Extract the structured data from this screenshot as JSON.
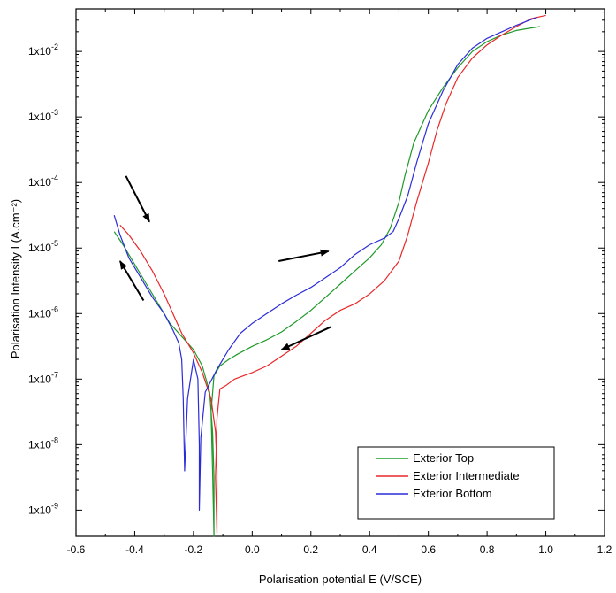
{
  "chart_data": {
    "type": "line",
    "title": "",
    "xlabel": "Polarisation potential E (V/SCE)",
    "ylabel": "Polarisation Intensity I (A.cm⁻²)",
    "xlim": [
      -0.6,
      1.2
    ],
    "ylim_log10": [
      -9.4,
      -1.35
    ],
    "grid": false,
    "x_ticks": [
      -0.6,
      -0.4,
      -0.2,
      0.0,
      0.2,
      0.4,
      0.6,
      0.8,
      1.0,
      1.2
    ],
    "x_tick_labels": [
      "-0.6",
      "-0.4",
      "-0.2",
      "0.0",
      "0.2",
      "0.4",
      "0.6",
      "0.8",
      "1.0",
      "1.2"
    ],
    "y_ticks": [
      {
        "base": "1x10",
        "exp": "-9",
        "log10": -9
      },
      {
        "base": "1x10",
        "exp": "-8",
        "log10": -8
      },
      {
        "base": "1x10",
        "exp": "-7",
        "log10": -7
      },
      {
        "base": "1x10",
        "exp": "-6",
        "log10": -6
      },
      {
        "base": "1x10",
        "exp": "-5",
        "log10": -5
      },
      {
        "base": "1x10",
        "exp": "-4",
        "log10": -4
      },
      {
        "base": "1x10",
        "exp": "-3",
        "log10": -3
      },
      {
        "base": "1x10",
        "exp": "-2",
        "log10": -2
      }
    ],
    "legend_position": "bottom-right",
    "series": [
      {
        "name": "Exterior Top",
        "color": "#1f9a2a",
        "x": [
          -0.47,
          -0.44,
          -0.4,
          -0.36,
          -0.32,
          -0.28,
          -0.24,
          -0.2,
          -0.17,
          -0.145,
          -0.135,
          -0.13,
          -0.13,
          -0.135,
          -0.14,
          -0.13,
          -0.11,
          -0.08,
          -0.05,
          0.0,
          0.05,
          0.1,
          0.15,
          0.2,
          0.25,
          0.3,
          0.35,
          0.4,
          0.44,
          0.47,
          0.5,
          0.52,
          0.55,
          0.6,
          0.65,
          0.7,
          0.75,
          0.8,
          0.85,
          0.9,
          0.98
        ],
        "log_y": [
          -4.75,
          -4.95,
          -5.25,
          -5.55,
          -5.85,
          -6.15,
          -6.35,
          -6.55,
          -6.8,
          -7.2,
          -7.8,
          -8.5,
          -9.4,
          -8.4,
          -7.5,
          -6.95,
          -6.8,
          -6.7,
          -6.62,
          -6.5,
          -6.4,
          -6.28,
          -6.12,
          -5.95,
          -5.75,
          -5.55,
          -5.35,
          -5.15,
          -4.95,
          -4.7,
          -4.3,
          -3.9,
          -3.4,
          -2.9,
          -2.55,
          -2.25,
          -2.0,
          -1.85,
          -1.75,
          -1.68,
          -1.62
        ]
      },
      {
        "name": "Exterior Intermediate",
        "color": "#e8282a",
        "x": [
          -0.45,
          -0.42,
          -0.38,
          -0.34,
          -0.3,
          -0.27,
          -0.24,
          -0.2,
          -0.17,
          -0.14,
          -0.125,
          -0.12,
          -0.12,
          -0.125,
          -0.12,
          -0.11,
          -0.09,
          -0.06,
          -0.03,
          0.0,
          0.05,
          0.1,
          0.15,
          0.2,
          0.25,
          0.3,
          0.35,
          0.4,
          0.45,
          0.5,
          0.53,
          0.56,
          0.6,
          0.63,
          0.66,
          0.7,
          0.75,
          0.8,
          0.85,
          0.9,
          0.95,
          1.0
        ],
        "log_y": [
          -4.65,
          -4.8,
          -5.05,
          -5.35,
          -5.7,
          -6.0,
          -6.3,
          -6.6,
          -6.9,
          -7.3,
          -7.8,
          -8.4,
          -9.35,
          -8.5,
          -7.6,
          -7.15,
          -7.1,
          -7.0,
          -6.95,
          -6.9,
          -6.8,
          -6.65,
          -6.5,
          -6.3,
          -6.1,
          -5.95,
          -5.85,
          -5.7,
          -5.5,
          -5.2,
          -4.8,
          -4.3,
          -3.7,
          -3.2,
          -2.8,
          -2.4,
          -2.1,
          -1.9,
          -1.75,
          -1.62,
          -1.5,
          -1.45
        ]
      },
      {
        "name": "Exterior Bottom",
        "color": "#2b2bd9",
        "x": [
          -0.47,
          -0.45,
          -0.42,
          -0.38,
          -0.34,
          -0.3,
          -0.27,
          -0.25,
          -0.24,
          -0.235,
          -0.23,
          -0.22,
          -0.2,
          -0.185,
          -0.18,
          -0.18,
          -0.175,
          -0.16,
          -0.12,
          -0.08,
          -0.04,
          0.0,
          0.05,
          0.1,
          0.15,
          0.2,
          0.25,
          0.3,
          0.35,
          0.4,
          0.45,
          0.48,
          0.5,
          0.53,
          0.56,
          0.6,
          0.65,
          0.7,
          0.75,
          0.8,
          0.85,
          0.9,
          0.97
        ],
        "log_y": [
          -4.5,
          -4.8,
          -5.15,
          -5.45,
          -5.75,
          -6.0,
          -6.25,
          -6.45,
          -6.7,
          -7.3,
          -8.4,
          -7.3,
          -6.7,
          -7.0,
          -8.0,
          -9.0,
          -7.9,
          -7.2,
          -6.85,
          -6.55,
          -6.3,
          -6.15,
          -6.0,
          -5.85,
          -5.72,
          -5.6,
          -5.45,
          -5.3,
          -5.1,
          -4.95,
          -4.85,
          -4.75,
          -4.55,
          -4.2,
          -3.7,
          -3.1,
          -2.6,
          -2.2,
          -1.95,
          -1.8,
          -1.7,
          -1.6,
          -1.48
        ]
      }
    ],
    "arrows": [
      {
        "name": "forward-scan-down",
        "x1": -0.43,
        "y1": -3.9,
        "x2": -0.35,
        "y2": -4.6
      },
      {
        "name": "reverse-scan-up",
        "x1": -0.37,
        "y1": -5.8,
        "x2": -0.45,
        "y2": -5.2
      },
      {
        "name": "anodic-forward",
        "x1": 0.09,
        "y1": -5.2,
        "x2": 0.26,
        "y2": -5.05
      },
      {
        "name": "anodic-reverse",
        "x1": 0.27,
        "y1": -6.2,
        "x2": 0.1,
        "y2": -6.55
      }
    ]
  }
}
